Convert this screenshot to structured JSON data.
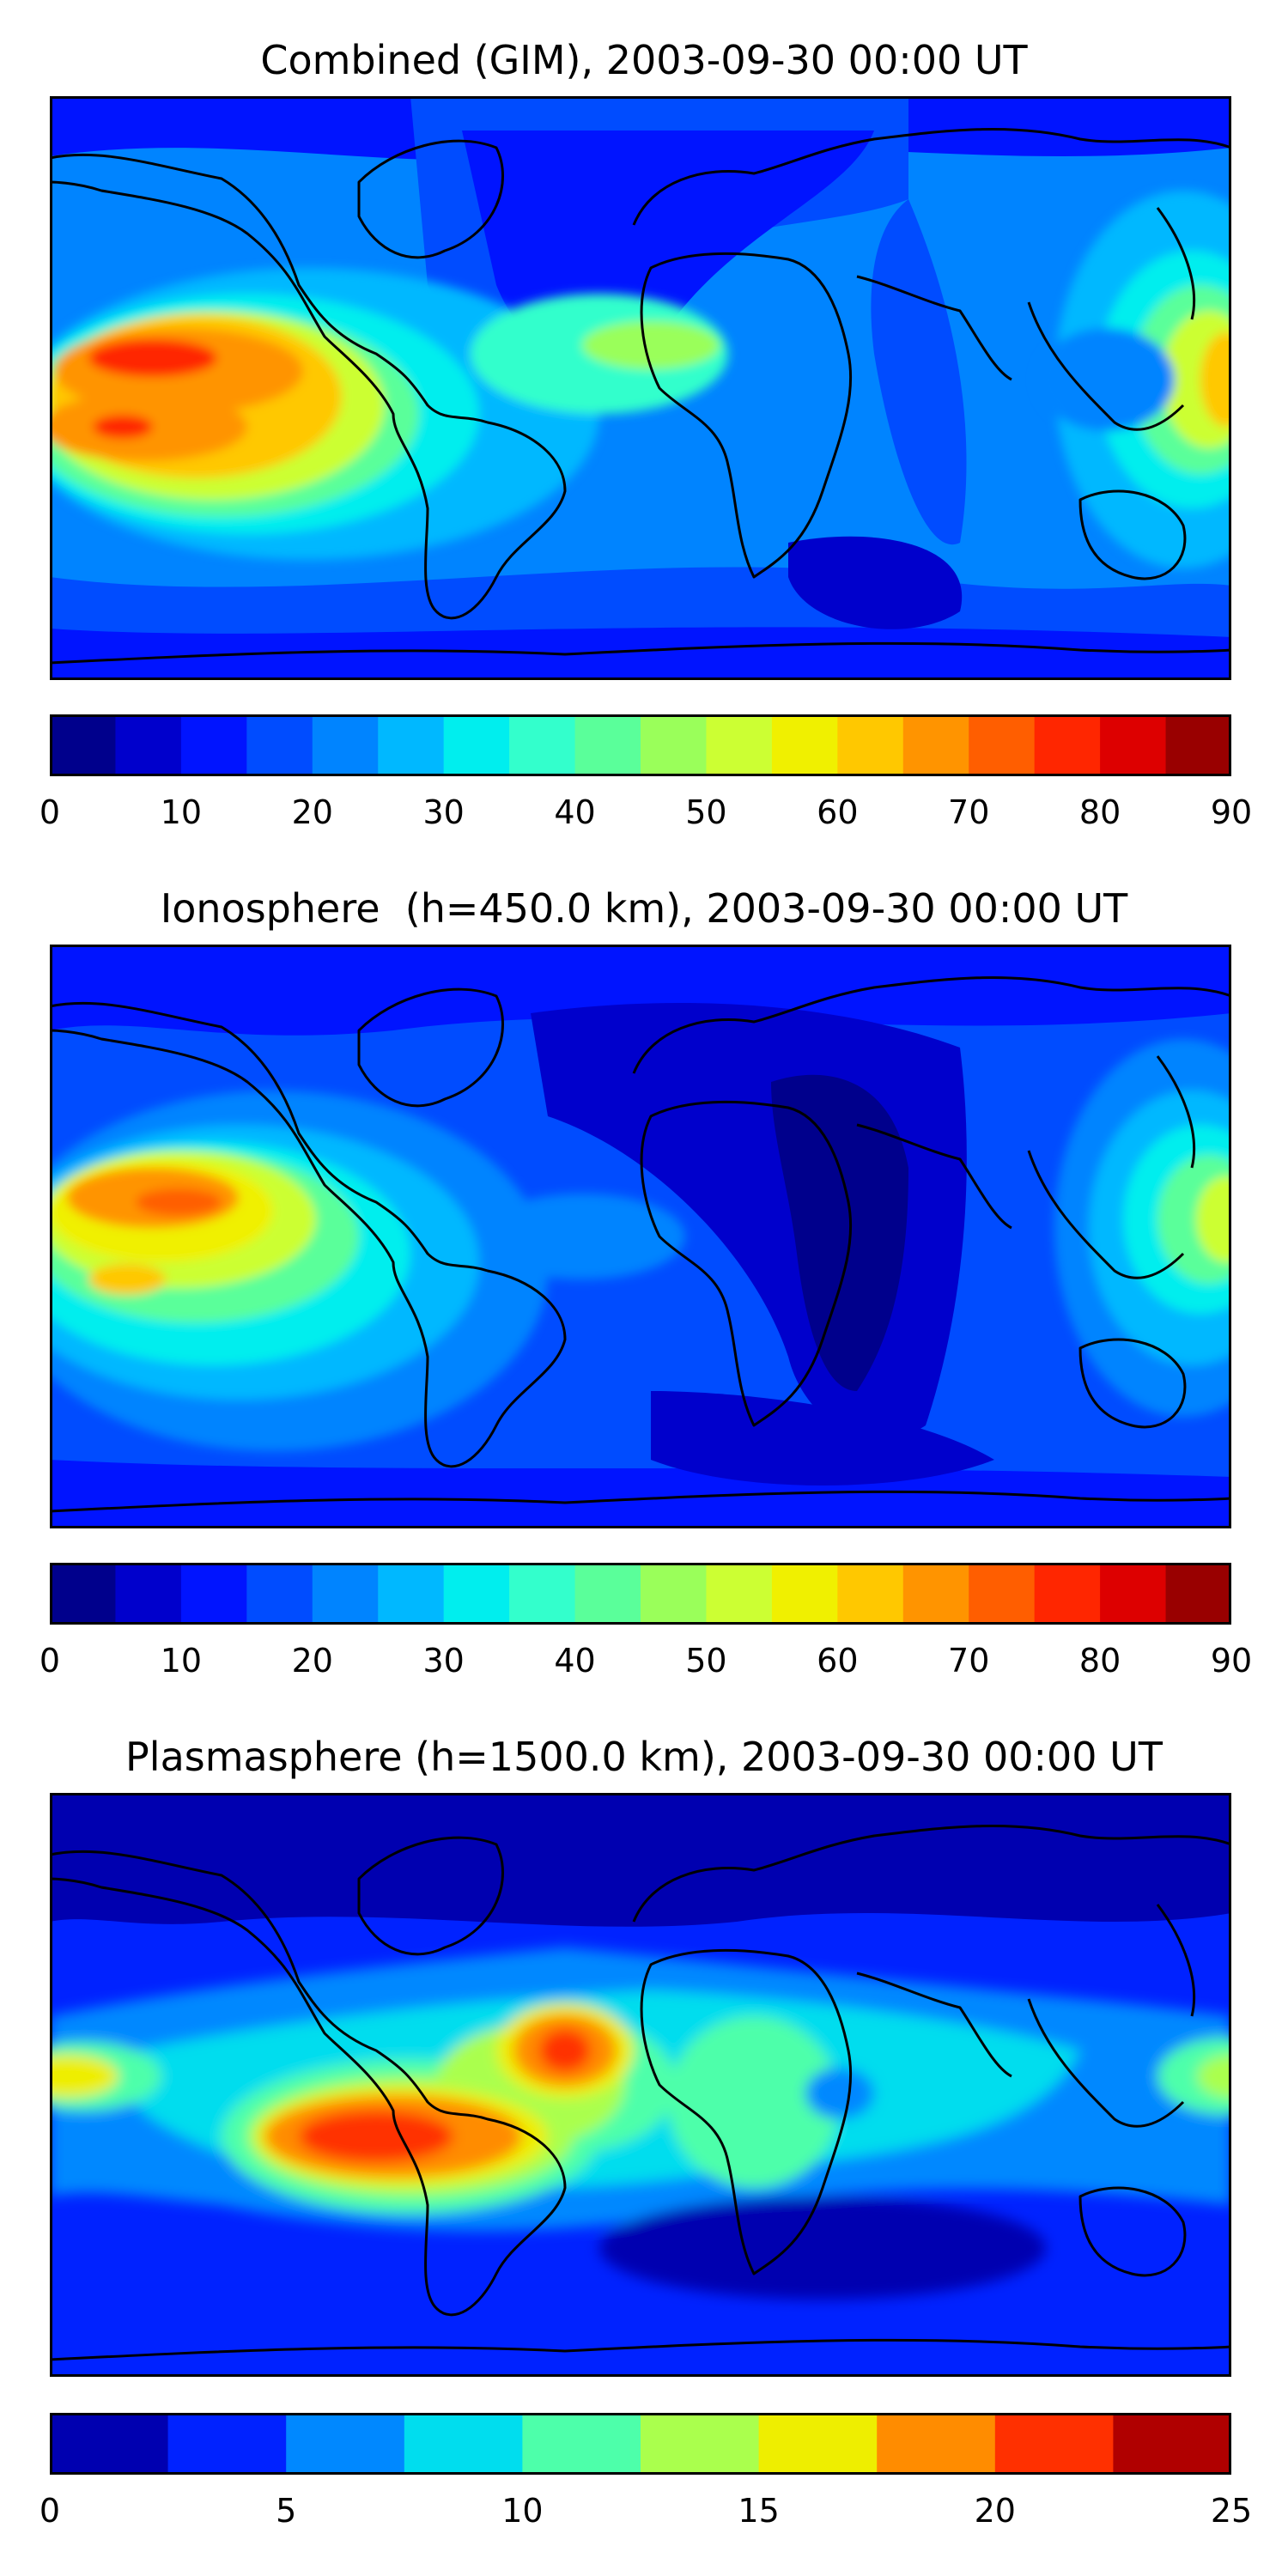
{
  "panels": [
    {
      "title": "Combined (GIM), 2003-09-30 00:00 UT",
      "colorbar": {
        "min": 0,
        "max": 90,
        "colors": [
          "#00008c",
          "#0000cc",
          "#0014ff",
          "#004cff",
          "#0084ff",
          "#00b8ff",
          "#00eeee",
          "#33ffcc",
          "#5aff9a",
          "#9aff5a",
          "#ccff33",
          "#f0f000",
          "#ffc800",
          "#ff9400",
          "#ff5e00",
          "#ff2600",
          "#dd0000",
          "#990000"
        ],
        "ticks": [
          "0",
          "10",
          "20",
          "30",
          "40",
          "50",
          "60",
          "70",
          "80",
          "90"
        ]
      }
    },
    {
      "title": "Ionosphere  (h=450.0 km), 2003-09-30 00:00 UT",
      "colorbar": {
        "min": 0,
        "max": 90,
        "colors": [
          "#00008c",
          "#0000cc",
          "#0014ff",
          "#004cff",
          "#0084ff",
          "#00b8ff",
          "#00eeee",
          "#33ffcc",
          "#5aff9a",
          "#9aff5a",
          "#ccff33",
          "#f0f000",
          "#ffc800",
          "#ff9400",
          "#ff5e00",
          "#ff2600",
          "#dd0000",
          "#990000"
        ],
        "ticks": [
          "0",
          "10",
          "20",
          "30",
          "40",
          "50",
          "60",
          "70",
          "80",
          "90"
        ]
      }
    },
    {
      "title": "Plasmasphere (h=1500.0 km), 2003-09-30 00:00 UT",
      "colorbar": {
        "min": 0,
        "max": 25,
        "colors": [
          "#0000b0",
          "#0022ff",
          "#0088ff",
          "#00ddee",
          "#4dffaa",
          "#aaff4d",
          "#eeee00",
          "#ff8c00",
          "#ff3000",
          "#b00000"
        ],
        "ticks": [
          "0",
          "5",
          "10",
          "15",
          "20",
          "25"
        ]
      }
    }
  ]
}
